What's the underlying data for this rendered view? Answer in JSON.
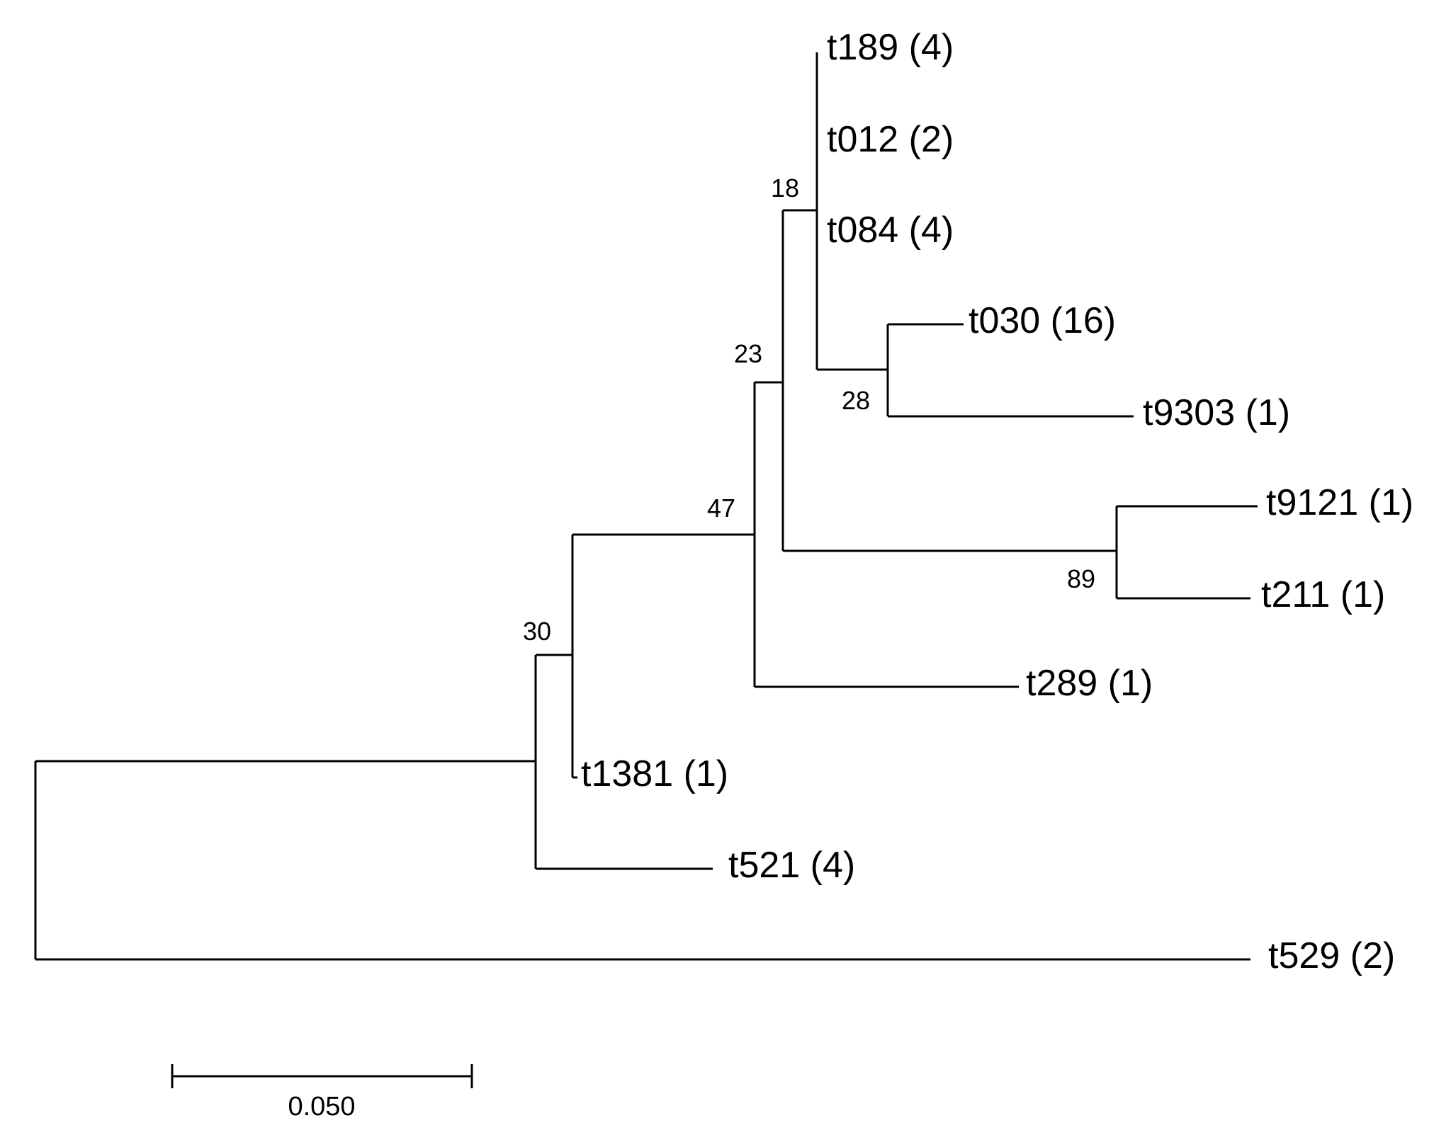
{
  "tree": {
    "leaves": [
      {
        "id": "t189",
        "label": "t189 (4)"
      },
      {
        "id": "t012",
        "label": "t012 (2)"
      },
      {
        "id": "t084",
        "label": "t084 (4)"
      },
      {
        "id": "t030",
        "label": "t030 (16)"
      },
      {
        "id": "t9303",
        "label": "t9303 (1)"
      },
      {
        "id": "t9121",
        "label": "t9121 (1)"
      },
      {
        "id": "t211",
        "label": "t211 (1)"
      },
      {
        "id": "t289",
        "label": "t289 (1)"
      },
      {
        "id": "t1381",
        "label": "t1381 (1)"
      },
      {
        "id": "t521",
        "label": "t521 (4)"
      },
      {
        "id": "t529",
        "label": "t529 (2)"
      }
    ],
    "support_values": [
      {
        "id": "n18",
        "value": "18"
      },
      {
        "id": "n23",
        "value": "23"
      },
      {
        "id": "n28",
        "value": "28"
      },
      {
        "id": "n47",
        "value": "47"
      },
      {
        "id": "n89",
        "value": "89"
      },
      {
        "id": "n30",
        "value": "30"
      }
    ]
  },
  "scale_bar": {
    "label": "0.050",
    "value": 0.05
  }
}
